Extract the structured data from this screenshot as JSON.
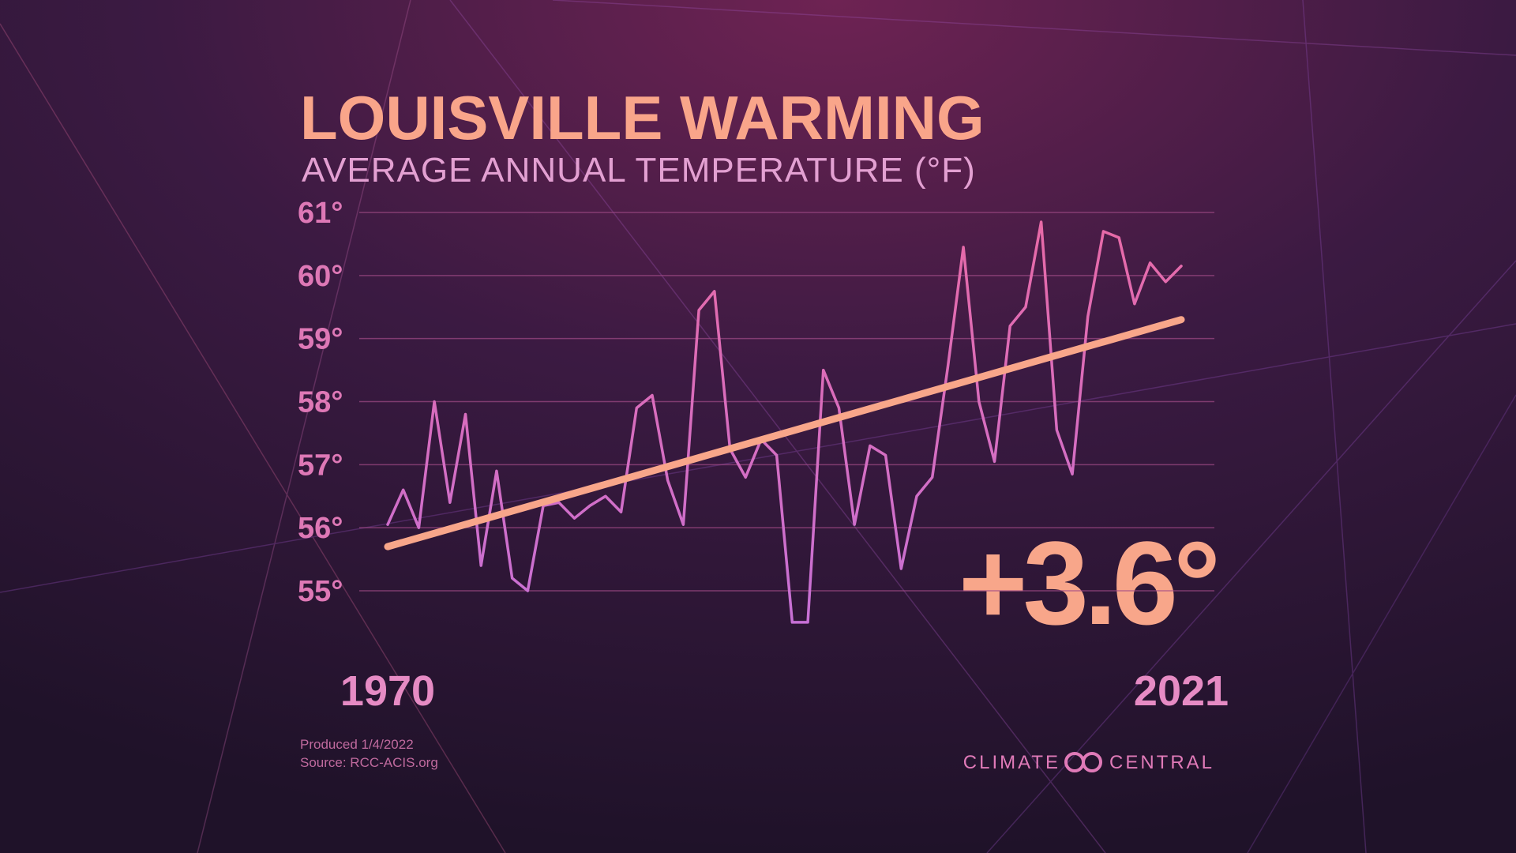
{
  "chart_data": {
    "type": "line",
    "title": "LOUISVILLE WARMING",
    "subtitle": "AVERAGE ANNUAL TEMPERATURE (°F)",
    "x": [
      1970,
      1971,
      1972,
      1973,
      1974,
      1975,
      1976,
      1977,
      1978,
      1979,
      1980,
      1981,
      1982,
      1983,
      1984,
      1985,
      1986,
      1987,
      1988,
      1989,
      1990,
      1991,
      1992,
      1993,
      1994,
      1995,
      1996,
      1997,
      1998,
      1999,
      2000,
      2001,
      2002,
      2003,
      2004,
      2005,
      2006,
      2007,
      2008,
      2009,
      2010,
      2011,
      2012,
      2013,
      2014,
      2015,
      2016,
      2017,
      2018,
      2019,
      2020,
      2021
    ],
    "series": [
      {
        "color": "#d66cc0",
        "values": [
          56.05,
          56.6,
          56.0,
          58.0,
          56.4,
          57.8,
          55.4,
          56.9,
          55.2,
          55.0,
          56.35,
          56.4,
          56.15,
          56.35,
          56.5,
          56.25,
          57.9,
          58.1,
          56.75,
          56.05,
          59.45,
          59.75,
          57.25,
          56.8,
          57.4,
          57.15,
          54.5,
          54.5,
          58.5,
          57.9,
          56.05,
          57.3,
          57.15,
          55.35,
          56.5,
          56.8,
          58.55,
          60.45,
          58.0,
          57.05,
          59.2,
          59.5,
          60.85,
          57.55,
          56.85,
          59.35,
          60.7,
          60.6,
          59.55,
          60.2,
          59.9,
          60.15
        ]
      }
    ],
    "trend": {
      "color": "#f8a68a",
      "x": [
        1970,
        2021
      ],
      "values": [
        55.7,
        59.3
      ]
    },
    "xlim": [
      1970,
      2021
    ],
    "xticks": [
      1970,
      2021
    ],
    "ylim": [
      55,
      61
    ],
    "yticks": [
      {
        "value": 55,
        "label": "55°"
      },
      {
        "value": 56,
        "label": "56°"
      },
      {
        "value": 57,
        "label": "57°"
      },
      {
        "value": 58,
        "label": "58°"
      },
      {
        "value": 59,
        "label": "59°"
      },
      {
        "value": 60,
        "label": "60°"
      },
      {
        "value": 61,
        "label": "61°"
      }
    ],
    "grid": true,
    "annotation": "+3.6°",
    "produced": "Produced 1/4/2022",
    "source": "Source: RCC-ACIS.org",
    "brand": [
      "CLIMATE",
      "CENTRAL"
    ]
  }
}
